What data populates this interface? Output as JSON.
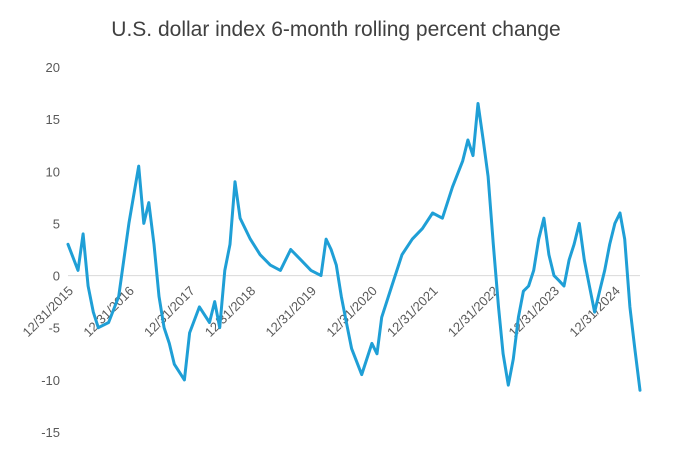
{
  "chart_data": {
    "type": "line",
    "title": "U.S. dollar index 6-month rolling percent change",
    "xlabel": "",
    "ylabel": "",
    "ylim": [
      -15,
      20
    ],
    "y_ticks": [
      "20",
      "15",
      "10",
      "5",
      "0",
      "-5",
      "-10",
      "-15"
    ],
    "y_tick_values": [
      20,
      15,
      10,
      5,
      0,
      -5,
      -10,
      -15
    ],
    "x_ticks": [
      "12/31/2015",
      "12/31/2016",
      "12/31/2017",
      "12/31/2018",
      "12/31/2019",
      "12/31/2020",
      "12/31/2021",
      "12/31/2022",
      "12/31/2023",
      "12/31/2024"
    ],
    "xlim": [
      "12/31/2015",
      "5/31/2025"
    ],
    "grid": false,
    "zero_line": true,
    "series": [
      {
        "color": "#1f9fd6",
        "points": [
          [
            "12/31/2015",
            3.0
          ],
          [
            "2/29/2016",
            0.5
          ],
          [
            "3/31/2016",
            4.0
          ],
          [
            "4/30/2016",
            -1.0
          ],
          [
            "5/31/2016",
            -3.5
          ],
          [
            "6/30/2016",
            -5.0
          ],
          [
            "8/31/2016",
            -4.5
          ],
          [
            "10/31/2016",
            -2.0
          ],
          [
            "12/31/2016",
            5.0
          ],
          [
            "2/28/2017",
            10.5
          ],
          [
            "3/31/2017",
            5.0
          ],
          [
            "4/30/2017",
            7.0
          ],
          [
            "5/31/2017",
            3.0
          ],
          [
            "6/30/2017",
            -2.0
          ],
          [
            "7/31/2017",
            -5.0
          ],
          [
            "8/31/2017",
            -6.5
          ],
          [
            "9/30/2017",
            -8.5
          ],
          [
            "11/30/2017",
            -10.0
          ],
          [
            "12/31/2017",
            -5.5
          ],
          [
            "2/28/2018",
            -3.0
          ],
          [
            "4/30/2018",
            -4.5
          ],
          [
            "5/31/2018",
            -2.5
          ],
          [
            "6/30/2018",
            -5.0
          ],
          [
            "7/31/2018",
            0.5
          ],
          [
            "8/31/2018",
            3.0
          ],
          [
            "9/30/2018",
            9.0
          ],
          [
            "10/31/2018",
            5.5
          ],
          [
            "12/31/2018",
            3.5
          ],
          [
            "2/28/2019",
            2.0
          ],
          [
            "4/30/2019",
            1.0
          ],
          [
            "6/30/2019",
            0.5
          ],
          [
            "8/31/2019",
            2.5
          ],
          [
            "10/31/2019",
            1.5
          ],
          [
            "12/31/2019",
            0.5
          ],
          [
            "2/29/2020",
            0.0
          ],
          [
            "3/31/2020",
            3.5
          ],
          [
            "4/30/2020",
            2.5
          ],
          [
            "5/31/2020",
            1.0
          ],
          [
            "6/30/2020",
            -2.0
          ],
          [
            "7/31/2020",
            -4.5
          ],
          [
            "8/31/2020",
            -7.0
          ],
          [
            "10/31/2020",
            -9.5
          ],
          [
            "12/31/2020",
            -6.5
          ],
          [
            "1/31/2021",
            -7.5
          ],
          [
            "2/28/2021",
            -4.0
          ],
          [
            "4/30/2021",
            -1.0
          ],
          [
            "6/30/2021",
            2.0
          ],
          [
            "8/31/2021",
            3.5
          ],
          [
            "10/31/2021",
            4.5
          ],
          [
            "12/31/2021",
            6.0
          ],
          [
            "2/28/2022",
            5.5
          ],
          [
            "4/30/2022",
            8.5
          ],
          [
            "6/30/2022",
            11.0
          ],
          [
            "7/31/2022",
            13.0
          ],
          [
            "8/31/2022",
            11.5
          ],
          [
            "9/30/2022",
            16.5
          ],
          [
            "10/31/2022",
            13.0
          ],
          [
            "11/30/2022",
            9.5
          ],
          [
            "12/31/2022",
            3.0
          ],
          [
            "1/31/2023",
            -3.0
          ],
          [
            "2/28/2023",
            -7.5
          ],
          [
            "3/31/2023",
            -10.5
          ],
          [
            "4/30/2023",
            -8.0
          ],
          [
            "5/31/2023",
            -4.0
          ],
          [
            "6/30/2023",
            -1.5
          ],
          [
            "7/31/2023",
            -1.0
          ],
          [
            "8/31/2023",
            0.5
          ],
          [
            "9/30/2023",
            3.5
          ],
          [
            "10/31/2023",
            5.5
          ],
          [
            "11/30/2023",
            2.0
          ],
          [
            "12/31/2023",
            0.0
          ],
          [
            "1/31/2024",
            -0.5
          ],
          [
            "2/29/2024",
            -1.0
          ],
          [
            "3/31/2024",
            1.5
          ],
          [
            "4/30/2024",
            3.0
          ],
          [
            "5/31/2024",
            5.0
          ],
          [
            "6/30/2024",
            1.5
          ],
          [
            "7/31/2024",
            -1.0
          ],
          [
            "8/31/2024",
            -3.5
          ],
          [
            "9/30/2024",
            -1.5
          ],
          [
            "10/31/2024",
            0.5
          ],
          [
            "11/30/2024",
            3.0
          ],
          [
            "12/31/2024",
            5.0
          ],
          [
            "1/31/2025",
            6.0
          ],
          [
            "2/28/2025",
            3.5
          ],
          [
            "3/31/2025",
            -3.0
          ],
          [
            "4/30/2025",
            -7.0
          ],
          [
            "5/31/2025",
            -11.0
          ]
        ]
      }
    ]
  }
}
